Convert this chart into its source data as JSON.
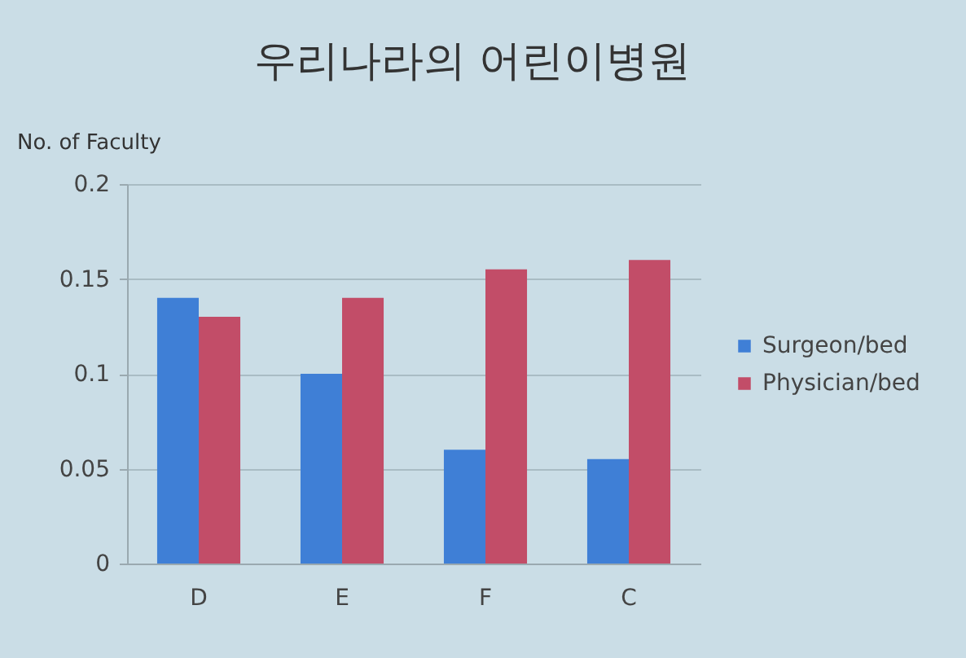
{
  "chart_data": {
    "type": "bar",
    "title": "우리나라의 어린이병원",
    "ylabel": "No. of Faculty",
    "categories": [
      "D",
      "E",
      "F",
      "C"
    ],
    "series": [
      {
        "name": "Surgeon/bed",
        "color": "#3f7fd6",
        "values": [
          0.14,
          0.1,
          0.06,
          0.055
        ]
      },
      {
        "name": "Physician/bed",
        "color": "#c24d68",
        "values": [
          0.13,
          0.14,
          0.155,
          0.16
        ]
      }
    ],
    "ylim": [
      0,
      0.2
    ],
    "yticks": [
      0,
      0.05,
      0.1,
      0.15,
      0.2
    ],
    "grid": "y",
    "legend": "right"
  }
}
